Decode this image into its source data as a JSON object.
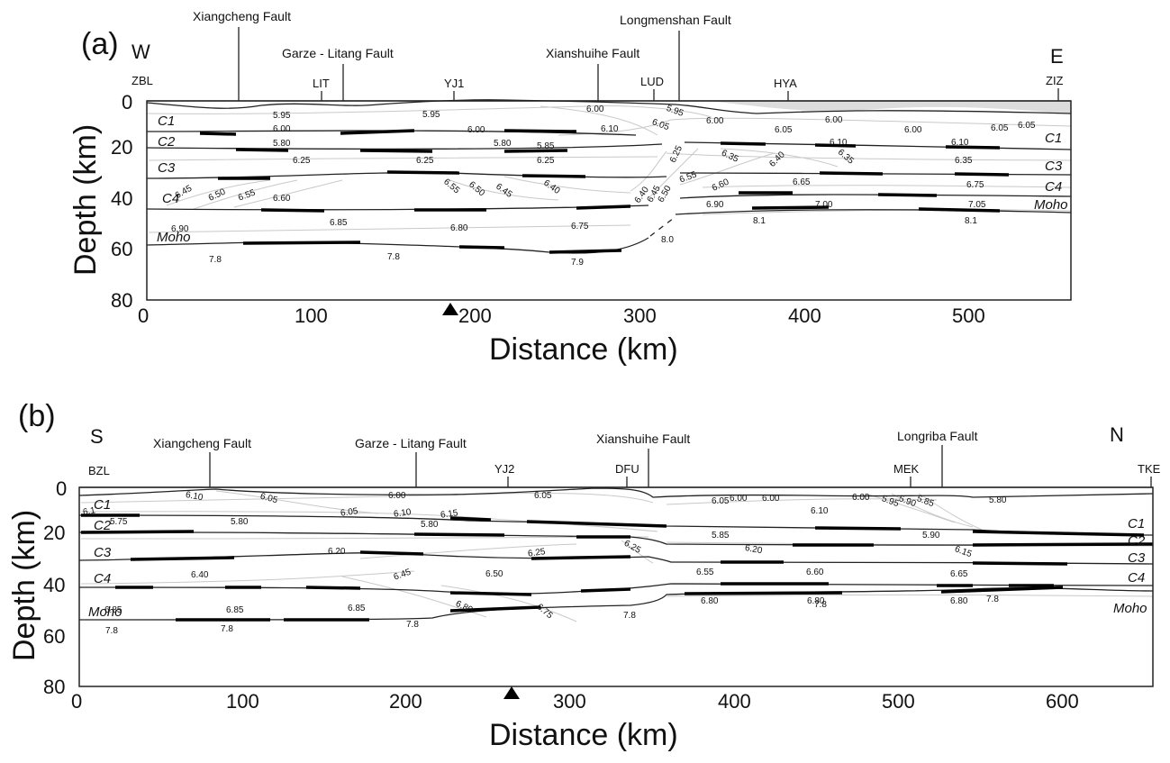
{
  "panels": [
    {
      "label": "(a)",
      "left_dir": "W",
      "right_dir": "E",
      "ylabel": "Depth (km)",
      "xlabel": "Distance (km)",
      "x_ticks": [
        "0",
        "100",
        "200",
        "300",
        "400",
        "500"
      ],
      "y_ticks": [
        "0",
        "20",
        "40",
        "60",
        "80"
      ],
      "stations": [
        {
          "name": "ZBL",
          "km": 0
        },
        {
          "name": "LIT",
          "km": 108
        },
        {
          "name": "YJ1",
          "km": 198
        },
        {
          "name": "LUD",
          "km": 309
        },
        {
          "name": "HYA",
          "km": 390
        },
        {
          "name": "ZIZ",
          "km": 552
        }
      ],
      "faults": [
        {
          "name": "Xiangcheng Fault",
          "km": 58
        },
        {
          "name": "Garze - Litang Fault",
          "km": 121
        },
        {
          "name": "Xianshuihe Fault",
          "km": 275
        },
        {
          "name": "Longmenshan Fault",
          "km": 325
        }
      ],
      "marker_km": 186,
      "layer_labels": [
        "C1",
        "C2",
        "C3",
        "C4",
        "Moho",
        "C1",
        "C3",
        "C4",
        "Moho"
      ],
      "velocity_labels": [
        "5.95",
        "5.95",
        "6.00",
        "5.95",
        "6.00",
        "6.00",
        "6.05",
        "6.00",
        "6.00",
        "6.05",
        "6.00",
        "6.05",
        "6.05",
        "6.10",
        "5.80",
        "5.80",
        "5.85",
        "6.10",
        "6.10",
        "6.25",
        "6.25",
        "6.25",
        "6.25",
        "6.35",
        "6.40",
        "6.35",
        "6.35",
        "6.45",
        "6.50",
        "6.55",
        "6.60",
        "6.55",
        "6.50",
        "6.45",
        "6.40",
        "6.40",
        "6.45",
        "6.50",
        "6.55",
        "6.60",
        "6.65",
        "6.75",
        "6.90",
        "6.85",
        "6.80",
        "6.75",
        "6.90",
        "7.00",
        "7.05",
        "8.1",
        "8.1",
        "8.0",
        "7.8",
        "7.8",
        "7.9"
      ]
    },
    {
      "label": "(b)",
      "left_dir": "S",
      "right_dir": "N",
      "ylabel": "Depth (km)",
      "xlabel": "Distance (km)",
      "x_ticks": [
        "0",
        "100",
        "200",
        "300",
        "400",
        "500",
        "600"
      ],
      "y_ticks": [
        "0",
        "20",
        "40",
        "60",
        "80"
      ],
      "stations": [
        {
          "name": "BZL",
          "km": 0
        },
        {
          "name": "YJ2",
          "km": 262
        },
        {
          "name": "DFU",
          "km": 331
        },
        {
          "name": "MEK",
          "km": 502
        },
        {
          "name": "TKE",
          "km": 650
        }
      ],
      "faults": [
        {
          "name": "Xiangcheng Fault",
          "km": 80
        },
        {
          "name": "Garze - Litang Fault",
          "km": 206
        },
        {
          "name": "Xianshuihe Fault",
          "km": 345
        },
        {
          "name": "Longriba Fault",
          "km": 523
        }
      ],
      "marker_km": 262,
      "layer_labels": [
        "C1",
        "C2",
        "C3",
        "C4",
        "Moho",
        "C1",
        "C2",
        "C3",
        "C4",
        "Moho"
      ],
      "velocity_labels": [
        "6.1",
        "6.10",
        "6.05",
        "6.00",
        "6.05",
        "6.05",
        "6.00",
        "6.00",
        "6.00",
        "5.95",
        "5.90",
        "5.85",
        "5.80",
        "5.75",
        "5.80",
        "6.05",
        "6.10",
        "6.15",
        "6.10",
        "5.80",
        "5.85",
        "5.90",
        "6.20",
        "6.25",
        "6.25",
        "6.20",
        "6.15",
        "6.40",
        "6.45",
        "6.50",
        "6.55",
        "6.60",
        "6.65",
        "6.85",
        "6.85",
        "6.85",
        "6.80",
        "6.75",
        "6.80",
        "6.80",
        "6.80",
        "7.8",
        "7.8",
        "7.8",
        "7.8",
        "7.8",
        "7.8"
      ]
    }
  ],
  "colors": {
    "ink": "#111111",
    "contour": "#c9c9c9",
    "shade": "#dcdcdc",
    "marker": "#000000"
  }
}
